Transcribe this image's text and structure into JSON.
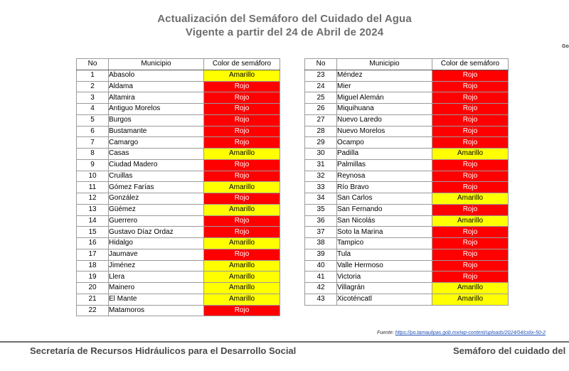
{
  "header": {
    "title": "Actualización del Semáforo del Cuidado del Agua",
    "subtitle": "Vigente a partir del 24 de Abril de 2024",
    "corner_text": "Go"
  },
  "colors": {
    "rojo": "#ff0000",
    "amarillo": "#ffff00"
  },
  "table": {
    "headers": [
      "No",
      "Municipio",
      "Color de semáforo"
    ],
    "left_rows": [
      {
        "no": "1",
        "municipio": "Abasolo",
        "color": "Amarillo"
      },
      {
        "no": "2",
        "municipio": "Aldama",
        "color": "Rojo"
      },
      {
        "no": "3",
        "municipio": "Altamira",
        "color": "Rojo"
      },
      {
        "no": "4",
        "municipio": "Antiguo Morelos",
        "color": "Rojo"
      },
      {
        "no": "5",
        "municipio": "Burgos",
        "color": "Rojo"
      },
      {
        "no": "6",
        "municipio": "Bustamante",
        "color": "Rojo"
      },
      {
        "no": "7",
        "municipio": "Camargo",
        "color": "Rojo"
      },
      {
        "no": "8",
        "municipio": "Casas",
        "color": "Amarillo"
      },
      {
        "no": "9",
        "municipio": "Ciudad Madero",
        "color": "Rojo"
      },
      {
        "no": "10",
        "municipio": "Cruillas",
        "color": "Rojo"
      },
      {
        "no": "11",
        "municipio": "Gómez Farías",
        "color": "Amarillo"
      },
      {
        "no": "12",
        "municipio": "González",
        "color": "Rojo"
      },
      {
        "no": "13",
        "municipio": "Güémez",
        "color": "Amarillo"
      },
      {
        "no": "14",
        "municipio": "Guerrero",
        "color": "Rojo"
      },
      {
        "no": "15",
        "municipio": "Gustavo Díaz Ordaz",
        "color": "Rojo"
      },
      {
        "no": "16",
        "municipio": "Hidalgo",
        "color": "Amarillo"
      },
      {
        "no": "17",
        "municipio": "Jaumave",
        "color": "Rojo"
      },
      {
        "no": "18",
        "municipio": "Jiménez",
        "color": "Amarillo"
      },
      {
        "no": "19",
        "municipio": "Llera",
        "color": "Amarillo"
      },
      {
        "no": "20",
        "municipio": "Mainero",
        "color": "Amarillo"
      },
      {
        "no": "21",
        "municipio": "El Mante",
        "color": "Amarillo"
      },
      {
        "no": "22",
        "municipio": "Matamoros",
        "color": "Rojo"
      }
    ],
    "right_rows": [
      {
        "no": "23",
        "municipio": "Méndez",
        "color": "Rojo"
      },
      {
        "no": "24",
        "municipio": "Mier",
        "color": "Rojo"
      },
      {
        "no": "25",
        "municipio": "Miguel Alemán",
        "color": "Rojo"
      },
      {
        "no": "26",
        "municipio": "Miquihuana",
        "color": "Rojo"
      },
      {
        "no": "27",
        "municipio": "Nuevo Laredo",
        "color": "Rojo"
      },
      {
        "no": "28",
        "municipio": "Nuevo Morelos",
        "color": "Rojo"
      },
      {
        "no": "29",
        "municipio": "Ocampo",
        "color": "Rojo"
      },
      {
        "no": "30",
        "municipio": "Padilla",
        "color": "Amarillo"
      },
      {
        "no": "31",
        "municipio": "Palmillas",
        "color": "Rojo"
      },
      {
        "no": "32",
        "municipio": "Reynosa",
        "color": "Rojo"
      },
      {
        "no": "33",
        "municipio": "Río Bravo",
        "color": "Rojo"
      },
      {
        "no": "34",
        "municipio": "San Carlos",
        "color": "Amarillo"
      },
      {
        "no": "35",
        "municipio": "San Fernando",
        "color": "Rojo"
      },
      {
        "no": "36",
        "municipio": "San Nicolás",
        "color": "Amarillo"
      },
      {
        "no": "37",
        "municipio": "Soto la Marina",
        "color": "Rojo"
      },
      {
        "no": "38",
        "municipio": "Tampico",
        "color": "Rojo"
      },
      {
        "no": "39",
        "municipio": "Tula",
        "color": "Rojo"
      },
      {
        "no": "40",
        "municipio": "Valle Hermoso",
        "color": "Rojo"
      },
      {
        "no": "41",
        "municipio": "Victoria",
        "color": "Rojo"
      },
      {
        "no": "42",
        "municipio": "Villagrán",
        "color": "Amarillo"
      },
      {
        "no": "43",
        "municipio": "Xicoténcatl",
        "color": "Amarillo"
      }
    ]
  },
  "source": {
    "label": "Fuente:",
    "url_text": "https://po.tamaulipas.gob.mx/wp-content/uploads/2024/04/cxlix-50-2"
  },
  "footer": {
    "left": "Secretaría de Recursos Hidráulicos para el Desarrollo Social",
    "right": "Semáforo del cuidado del"
  }
}
